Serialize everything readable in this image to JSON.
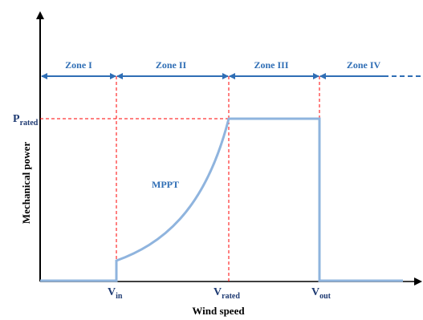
{
  "axes": {
    "x_label": "Wind speed",
    "y_label": "Mechanical power"
  },
  "zones": [
    {
      "label": "Zone I"
    },
    {
      "label": "Zone II"
    },
    {
      "label": "Zone III"
    },
    {
      "label": "Zone IV"
    }
  ],
  "speeds": {
    "vin": {
      "base": "V",
      "sub": "in"
    },
    "vrated": {
      "base": "V",
      "sub": "rated"
    },
    "vout": {
      "base": "V",
      "sub": "out"
    }
  },
  "power": {
    "base": "P",
    "sub": "rated"
  },
  "curve_label": "MPPT",
  "colors": {
    "axis": "#000000",
    "curve": "#8fb4de",
    "zone_arrow": "#2f6eb5",
    "guide": "#ff0000",
    "zone_text": "#2f6eb5",
    "speed_text": "#1f3b73"
  }
}
